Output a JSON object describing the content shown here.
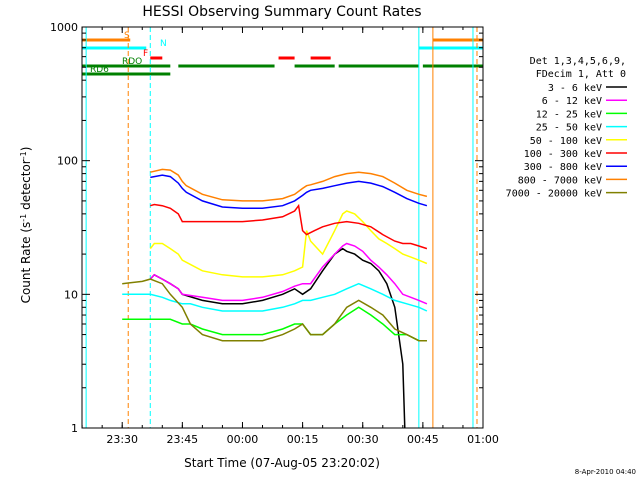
{
  "chart_data": {
    "type": "line",
    "title": "HESSI Observing Summary Count Rates",
    "xlabel": "Start Time (07-Aug-05 23:20:02)",
    "ylabel": "Count Rate (s",
    "ylabel_sup": "-1",
    "ylabel_mid": " detector",
    "ylabel_sup2": "-1",
    "ylabel_end": ")",
    "x_unit": "minutes",
    "xlim": [
      -0.03,
      100.0
    ],
    "ylim": [
      1,
      1000
    ],
    "y_scale": "log",
    "x_ticks": [
      {
        "value": 10,
        "label": "23:30"
      },
      {
        "value": 25,
        "label": "23:45"
      },
      {
        "value": 40,
        "label": "00:00"
      },
      {
        "value": 55,
        "label": "00:15"
      },
      {
        "value": 70,
        "label": "00:30"
      },
      {
        "value": 85,
        "label": "00:45"
      },
      {
        "value": 100,
        "label": "01:00"
      }
    ],
    "y_ticks": [
      {
        "value": 1,
        "label": "1"
      },
      {
        "value": 10,
        "label": "10"
      },
      {
        "value": 100,
        "label": "100"
      },
      {
        "value": 1000,
        "label": "1000"
      }
    ],
    "legend_header": [
      "Det 1,3,4,5,6,9,",
      "FDecim 1, Att 0"
    ],
    "legend_placement": "right",
    "grid": false,
    "series": [
      {
        "name": "3 - 6 keV",
        "color": "#000000",
        "x": [
          17,
          18,
          20,
          22,
          24,
          25,
          30,
          35,
          40,
          45,
          50,
          53,
          55,
          57,
          60,
          63,
          65,
          66,
          68,
          70,
          72,
          74,
          76,
          78,
          80,
          80.5
        ],
        "y": [
          13,
          14,
          13,
          12,
          11,
          10,
          9,
          8.5,
          8.5,
          9,
          10,
          11,
          10,
          11,
          15,
          20,
          22,
          21,
          20,
          18,
          17,
          15,
          12,
          8,
          3,
          1
        ]
      },
      {
        "name": "6 - 12 keV",
        "color": "#ff00ff",
        "x": [
          17,
          18,
          20,
          22,
          24,
          25,
          30,
          35,
          40,
          45,
          50,
          53,
          55,
          57,
          60,
          63,
          65,
          66,
          68,
          70,
          72,
          74,
          76,
          78,
          80,
          82,
          84,
          86
        ],
        "y": [
          13,
          14,
          13,
          12,
          11,
          10,
          9.5,
          9,
          9,
          9.5,
          10.5,
          11.5,
          12,
          12,
          16,
          20,
          23,
          24,
          23,
          21,
          18,
          16,
          14,
          12,
          10,
          9.5,
          9,
          8.5
        ]
      },
      {
        "name": "12 - 25 keV",
        "color": "#00ff00",
        "x": [
          10,
          15,
          17,
          20,
          22,
          25,
          27,
          30,
          35,
          40,
          45,
          50,
          53,
          55,
          57,
          60,
          63,
          66,
          69,
          72,
          75,
          78,
          81,
          84,
          86
        ],
        "y": [
          6.5,
          6.5,
          6.5,
          6.5,
          6.5,
          6,
          6,
          5.5,
          5,
          5,
          5,
          5.5,
          6,
          6,
          5,
          5,
          6,
          7,
          8,
          7,
          6,
          5,
          5,
          4.5,
          4.5
        ]
      },
      {
        "name": "25 - 50 keV",
        "color": "#00ffff",
        "x": [
          10,
          15,
          17,
          20,
          22,
          25,
          27,
          30,
          35,
          40,
          45,
          50,
          53,
          55,
          57,
          60,
          63,
          66,
          69,
          72,
          75,
          78,
          81,
          84,
          86
        ],
        "y": [
          10,
          10,
          10,
          9.5,
          9,
          8.5,
          8.5,
          8,
          7.5,
          7.5,
          7.5,
          8,
          8.5,
          9,
          9,
          9.5,
          10,
          11,
          12,
          11,
          10,
          9,
          8.5,
          8,
          7.5
        ]
      },
      {
        "name": "50 - 100 keV",
        "color": "#ffff00",
        "x": [
          17,
          18,
          20,
          22,
          24,
          25,
          30,
          35,
          40,
          45,
          50,
          53,
          55,
          56,
          57,
          60,
          63,
          65,
          66,
          68,
          70,
          72,
          74,
          76,
          78,
          80,
          82,
          84,
          86
        ],
        "y": [
          22,
          24,
          24,
          22,
          20,
          18,
          15,
          14,
          13.5,
          13.5,
          14,
          15,
          16,
          30,
          25,
          20,
          30,
          40,
          42,
          40,
          35,
          30,
          26,
          24,
          22,
          20,
          19,
          18,
          17
        ]
      },
      {
        "name": "100 - 300 keV",
        "color": "#ff0000",
        "x": [
          17,
          18,
          20,
          22,
          24,
          25,
          26,
          30,
          35,
          40,
          45,
          50,
          53,
          54,
          55,
          56,
          58,
          60,
          63,
          66,
          69,
          72,
          75,
          78,
          80,
          82,
          84,
          86
        ],
        "y": [
          46,
          47,
          46,
          44,
          40,
          35,
          35,
          35,
          35,
          35,
          36,
          38,
          42,
          46,
          30,
          28,
          30,
          32,
          34,
          35,
          34,
          32,
          28,
          25,
          24,
          24,
          23,
          22
        ]
      },
      {
        "name": "300 - 800 keV",
        "color": "#0000ff",
        "x": [
          17,
          20,
          22,
          24,
          25,
          26,
          30,
          35,
          40,
          45,
          50,
          53,
          55,
          56,
          57,
          60,
          63,
          66,
          69,
          72,
          75,
          78,
          81,
          84,
          86
        ],
        "y": [
          75,
          78,
          76,
          68,
          62,
          58,
          50,
          45,
          44,
          44,
          46,
          50,
          55,
          58,
          60,
          62,
          65,
          68,
          70,
          68,
          64,
          58,
          52,
          48,
          46
        ]
      },
      {
        "name": "800 - 7000 keV",
        "color": "#ff8000",
        "x": [
          17,
          20,
          22,
          24,
          25,
          26,
          30,
          35,
          40,
          45,
          50,
          53,
          55,
          56,
          57,
          60,
          63,
          66,
          69,
          72,
          75,
          78,
          81,
          84,
          86
        ],
        "y": [
          82,
          86,
          85,
          78,
          70,
          65,
          56,
          51,
          50,
          50,
          52,
          56,
          62,
          65,
          66,
          70,
          76,
          80,
          82,
          80,
          76,
          68,
          60,
          56,
          54
        ]
      },
      {
        "name": "7000 - 20000 keV",
        "color": "#808000",
        "x": [
          10,
          15,
          17,
          20,
          22,
          25,
          27,
          30,
          35,
          40,
          45,
          50,
          53,
          55,
          57,
          60,
          63,
          66,
          69,
          72,
          75,
          78,
          81,
          84,
          86
        ],
        "y": [
          12,
          12.5,
          13,
          12,
          10,
          8,
          6,
          5,
          4.5,
          4.5,
          4.5,
          5,
          5.5,
          6,
          5,
          5,
          6,
          8,
          9,
          8,
          7,
          5.5,
          5,
          4.5,
          4.5
        ]
      }
    ],
    "state_bars": [
      {
        "label": "S",
        "color": "#ff8000",
        "segments": [
          [
            0,
            12
          ],
          [
            87.5,
            100
          ]
        ]
      },
      {
        "label": "N",
        "color": "#00ffff",
        "segments": [
          [
            0,
            16
          ],
          [
            84,
            100
          ]
        ]
      },
      {
        "label": "F",
        "color": "#ff0000",
        "segments": [
          [
            17,
            20
          ],
          [
            49,
            53
          ],
          [
            57,
            62
          ]
        ]
      },
      {
        "label": "RDO",
        "color": "#008000",
        "segments": [
          [
            0,
            22
          ],
          [
            24,
            48
          ],
          [
            53,
            63
          ],
          [
            64,
            84
          ],
          [
            85,
            100
          ]
        ]
      },
      {
        "label": "RD6",
        "color": "#008000",
        "segments": [
          [
            0,
            22
          ]
        ]
      }
    ],
    "vertical_lines": [
      {
        "x": 1,
        "color": "#00ffff",
        "style": "solid"
      },
      {
        "x": 11.5,
        "color": "#ff8000",
        "style": "dashed"
      },
      {
        "x": 17,
        "color": "#00ffff",
        "style": "dashed"
      },
      {
        "x": 84,
        "color": "#00ffff",
        "style": "solid"
      },
      {
        "x": 87.5,
        "color": "#ff8000",
        "style": "solid"
      },
      {
        "x": 97.5,
        "color": "#00ffff",
        "style": "solid"
      },
      {
        "x": 98.5,
        "color": "#ff8000",
        "style": "dashed"
      }
    ]
  },
  "footer": {
    "timestamp": "8-Apr-2010 04:40"
  }
}
